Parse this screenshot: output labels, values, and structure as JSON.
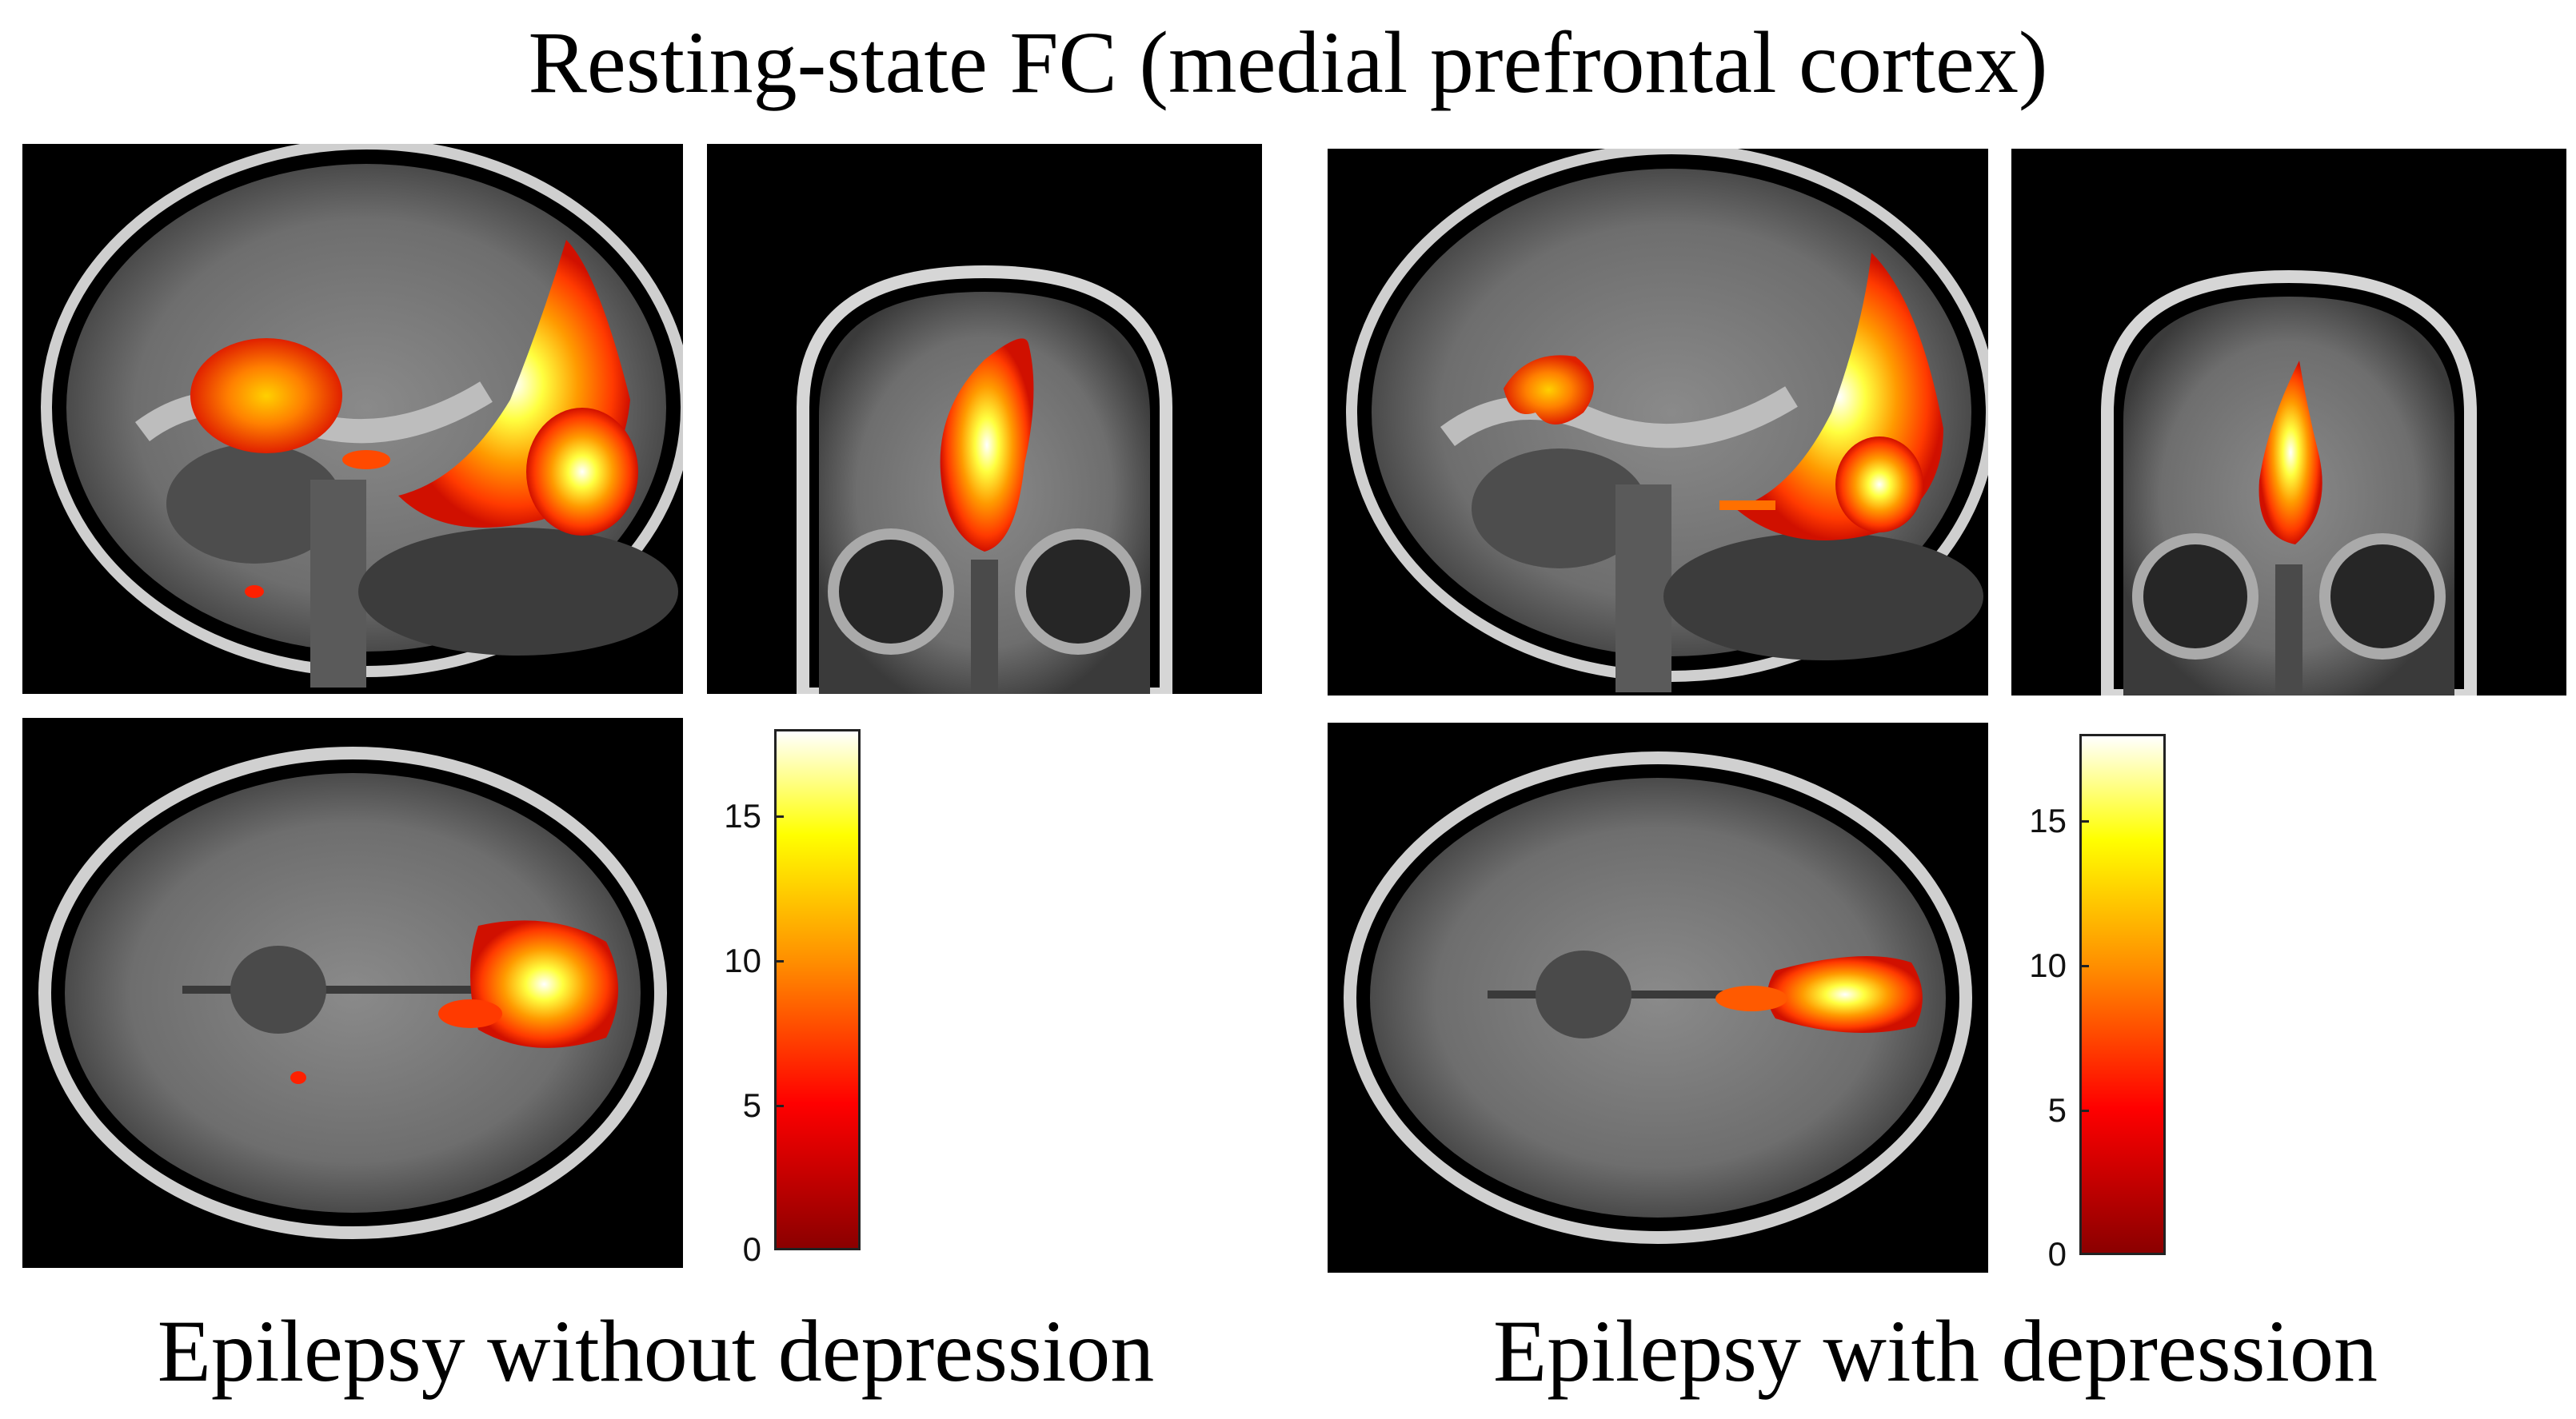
{
  "figure": {
    "title": "Resting-state FC (medial prefrontal cortex)"
  },
  "groups": [
    {
      "caption": "Epilepsy without depression",
      "views": [
        "sagittal",
        "coronal",
        "axial"
      ],
      "colorbar": {
        "ticks": [
          "0",
          "5",
          "10",
          "15"
        ],
        "min": 0,
        "max": 18
      }
    },
    {
      "caption": "Epilepsy with depression",
      "views": [
        "sagittal",
        "coronal",
        "axial"
      ],
      "colorbar": {
        "ticks": [
          "0",
          "5",
          "10",
          "15"
        ],
        "min": 0,
        "max": 18
      }
    }
  ],
  "colors": {
    "colormap": [
      "#8b0000",
      "#ff0000",
      "#ff8c00",
      "#ffff00",
      "#ffffff"
    ],
    "background": "#000000"
  }
}
